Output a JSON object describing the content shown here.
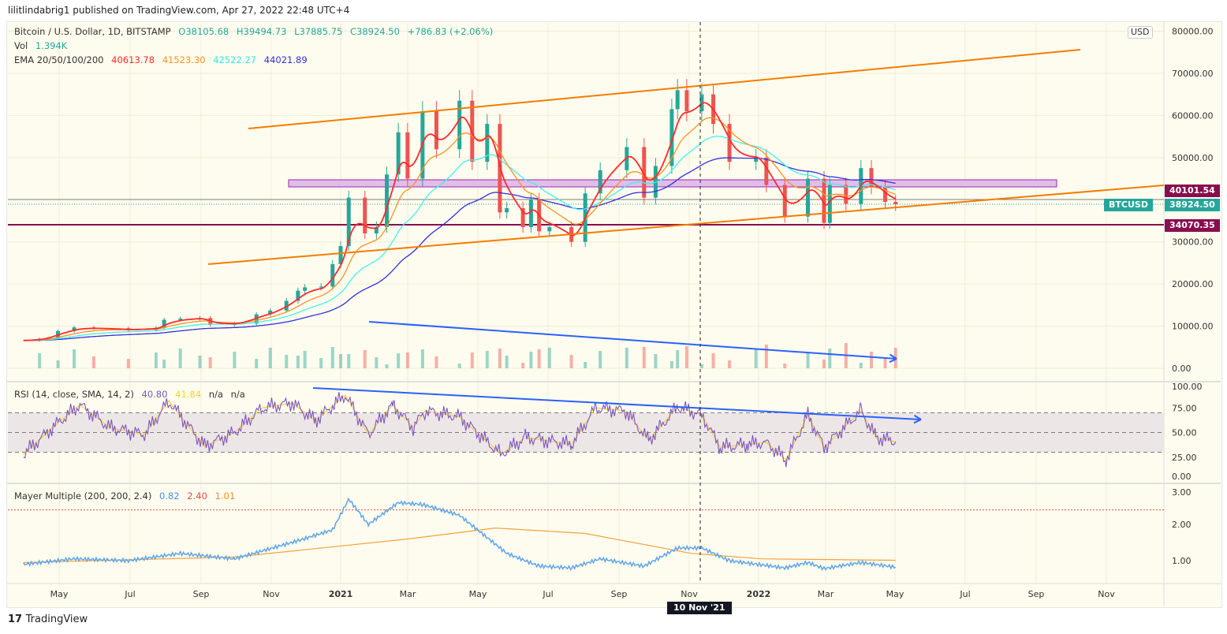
{
  "publisher": "lilitlindabrig1 published on TradingView.com, Apr 27, 2022 22:48 UTC+4",
  "logo": "TradingView",
  "currency_button": "USD",
  "legend": {
    "symbol": "Bitcoin / U.S. Dollar, 1D, BITSTAMP",
    "open": "O38105.68",
    "high": "H39494.73",
    "low": "L37885.75",
    "close": "C38924.50",
    "change": "+786.83 (+2.06%)",
    "vol_label": "Vol",
    "vol_value": "1.394K",
    "ema_label": "EMA 20/50/100/200",
    "ema20": "40613.78",
    "ema50": "41523.30",
    "ema100": "42522.27",
    "ema200": "44021.89",
    "rsi_label": "RSI (14, close, SMA, 14, 2)",
    "rsi_value": "40.80",
    "rsi_sma": "41.84",
    "rsi_na1": "n/a",
    "rsi_na2": "n/a",
    "mayer_label": "Mayer Multiple (200, 200, 2.4)",
    "mayer_value": "0.82",
    "mayer_threshold": "2.40",
    "mayer_avg": "1.01"
  },
  "price_tags": {
    "level_upper": "40101.54",
    "symbol": "BTCUSD",
    "last": "38924.50",
    "level_lower": "34070.35"
  },
  "colors": {
    "up": "#26a69a",
    "down": "#ef5350",
    "ema20": "#ff2a2a",
    "ema50": "#ff9020",
    "ema100": "#40f0f0",
    "ema200": "#3030e0",
    "rsi": "#7e57c2",
    "rsi_sma": "#f5d13c",
    "mayer": "#64a8e8",
    "mayer_avg": "#f7a040",
    "trend": "#f57c00",
    "zone": "#e1bee7",
    "level": "#880e4f",
    "arrow": "#2962ff"
  },
  "crosshair_label": "10 Nov '21",
  "chart_data": [
    {
      "type": "candlestick",
      "title": "Bitcoin / U.S. Dollar, 1D, BITSTAMP",
      "y_ticks": [
        "0.00",
        "10000.00",
        "20000.00",
        "30000.00",
        "50000.00",
        "60000.00",
        "70000.00",
        "80000.00"
      ],
      "ylim": [
        0,
        80000
      ],
      "x_ticks": [
        "May",
        "Jul",
        "Sep",
        "Nov",
        "2021",
        "Mar",
        "May",
        "Jul",
        "Sep",
        "Nov",
        "2022",
        "Mar",
        "May",
        "Jul",
        "Sep",
        "Nov"
      ],
      "close": [
        [
          "2020-04-01",
          6600
        ],
        [
          "2020-04-15",
          7000
        ],
        [
          "2020-05-01",
          8800
        ],
        [
          "2020-05-15",
          9700
        ],
        [
          "2020-06-01",
          9500
        ],
        [
          "2020-07-01",
          9100
        ],
        [
          "2020-07-25",
          9600
        ],
        [
          "2020-08-01",
          11500
        ],
        [
          "2020-08-15",
          11800
        ],
        [
          "2020-09-01",
          11900
        ],
        [
          "2020-09-10",
          10300
        ],
        [
          "2020-10-01",
          10600
        ],
        [
          "2020-10-20",
          12800
        ],
        [
          "2020-11-01",
          13700
        ],
        [
          "2020-11-15",
          16000
        ],
        [
          "2020-11-25",
          18400
        ],
        [
          "2020-12-01",
          19200
        ],
        [
          "2020-12-15",
          19400
        ],
        [
          "2020-12-25",
          24700
        ],
        [
          "2021-01-01",
          29000
        ],
        [
          "2021-01-08",
          40500
        ],
        [
          "2021-01-22",
          32000
        ],
        [
          "2021-02-01",
          33500
        ],
        [
          "2021-02-10",
          46000
        ],
        [
          "2021-02-20",
          56000
        ],
        [
          "2021-02-28",
          45000
        ],
        [
          "2021-03-13",
          61000
        ],
        [
          "2021-03-25",
          52000
        ],
        [
          "2021-04-14",
          63500
        ],
        [
          "2021-04-25",
          49000
        ],
        [
          "2021-05-08",
          58000
        ],
        [
          "2021-05-19",
          37000
        ],
        [
          "2021-05-25",
          38000
        ],
        [
          "2021-06-08",
          33500
        ],
        [
          "2021-06-15",
          40000
        ],
        [
          "2021-06-22",
          32500
        ],
        [
          "2021-07-01",
          33500
        ],
        [
          "2021-07-20",
          30000
        ],
        [
          "2021-08-01",
          41500
        ],
        [
          "2021-08-14",
          47000
        ],
        [
          "2021-09-06",
          52500
        ],
        [
          "2021-09-21",
          40500
        ],
        [
          "2021-10-01",
          48000
        ],
        [
          "2021-10-15",
          61500
        ],
        [
          "2021-10-20",
          66000
        ],
        [
          "2021-10-28",
          61000
        ],
        [
          "2021-11-10",
          65000
        ],
        [
          "2021-11-20",
          58000
        ],
        [
          "2021-12-04",
          49000
        ],
        [
          "2021-12-27",
          50000
        ],
        [
          "2022-01-05",
          43500
        ],
        [
          "2022-01-21",
          36000
        ],
        [
          "2022-02-10",
          45000
        ],
        [
          "2022-02-24",
          34500
        ],
        [
          "2022-03-01",
          43500
        ],
        [
          "2022-03-15",
          39000
        ],
        [
          "2022-03-28",
          47500
        ],
        [
          "2022-04-06",
          43000
        ],
        [
          "2022-04-18",
          39500
        ],
        [
          "2022-04-27",
          38924.5
        ]
      ],
      "levels": [
        34070.35,
        40101.54
      ]
    },
    {
      "type": "line",
      "title": "RSI (14, close, SMA, 14, 2)",
      "y_ticks": [
        "100.00",
        "75.00",
        "50.00",
        "25.00",
        "0.00"
      ],
      "ylim": [
        0,
        100
      ],
      "bands": [
        30,
        50,
        70
      ],
      "rsi": [
        [
          "2020-04-01",
          28
        ],
        [
          "2020-05-01",
          60
        ],
        [
          "2020-05-20",
          78
        ],
        [
          "2020-06-15",
          55
        ],
        [
          "2020-07-15",
          48
        ],
        [
          "2020-08-05",
          82
        ],
        [
          "2020-09-05",
          36
        ],
        [
          "2020-10-01",
          50
        ],
        [
          "2020-10-25",
          75
        ],
        [
          "2020-11-20",
          80
        ],
        [
          "2020-12-10",
          62
        ],
        [
          "2021-01-05",
          88
        ],
        [
          "2021-01-25",
          48
        ],
        [
          "2021-02-15",
          78
        ],
        [
          "2021-03-05",
          55
        ],
        [
          "2021-03-15",
          72
        ],
        [
          "2021-04-14",
          66
        ],
        [
          "2021-05-20",
          28
        ],
        [
          "2021-06-10",
          45
        ],
        [
          "2021-07-20",
          38
        ],
        [
          "2021-08-10",
          75
        ],
        [
          "2021-09-05",
          72
        ],
        [
          "2021-09-25",
          42
        ],
        [
          "2021-10-20",
          76
        ],
        [
          "2021-11-10",
          68
        ],
        [
          "2021-11-26",
          35
        ],
        [
          "2021-12-20",
          38
        ],
        [
          "2022-01-05",
          40
        ],
        [
          "2022-01-22",
          22
        ],
        [
          "2022-02-10",
          68
        ],
        [
          "2022-02-24",
          35
        ],
        [
          "2022-03-28",
          72
        ],
        [
          "2022-04-10",
          45
        ],
        [
          "2022-04-27",
          40.8
        ]
      ]
    },
    {
      "type": "line",
      "title": "Mayer Multiple (200, 200, 2.4)",
      "y_ticks": [
        "3.00",
        "2.00",
        "1.00"
      ],
      "ylim": [
        0,
        3.3
      ],
      "threshold": 2.4,
      "mayer": [
        [
          "2020-04-01",
          0.9
        ],
        [
          "2020-05-15",
          1.05
        ],
        [
          "2020-07-01",
          1.0
        ],
        [
          "2020-08-15",
          1.2
        ],
        [
          "2020-10-01",
          1.05
        ],
        [
          "2020-11-25",
          1.55
        ],
        [
          "2020-12-25",
          1.85
        ],
        [
          "2021-01-08",
          2.7
        ],
        [
          "2021-01-25",
          2.0
        ],
        [
          "2021-02-20",
          2.6
        ],
        [
          "2021-03-13",
          2.55
        ],
        [
          "2021-04-14",
          2.25
        ],
        [
          "2021-05-25",
          1.2
        ],
        [
          "2021-06-22",
          0.85
        ],
        [
          "2021-07-20",
          0.8
        ],
        [
          "2021-08-14",
          1.05
        ],
        [
          "2021-09-21",
          0.85
        ],
        [
          "2021-10-20",
          1.35
        ],
        [
          "2021-11-10",
          1.35
        ],
        [
          "2021-12-04",
          1.0
        ],
        [
          "2022-01-21",
          0.8
        ],
        [
          "2022-02-10",
          0.95
        ],
        [
          "2022-02-24",
          0.78
        ],
        [
          "2022-03-28",
          0.95
        ],
        [
          "2022-04-27",
          0.82
        ]
      ],
      "mayer_avg": [
        [
          "2020-04-01",
          0.95
        ],
        [
          "2020-10-01",
          1.1
        ],
        [
          "2021-03-01",
          1.6
        ],
        [
          "2021-05-15",
          1.9
        ],
        [
          "2021-08-01",
          1.75
        ],
        [
          "2021-11-01",
          1.2
        ],
        [
          "2022-01-01",
          1.05
        ],
        [
          "2022-04-27",
          1.01
        ]
      ]
    }
  ]
}
